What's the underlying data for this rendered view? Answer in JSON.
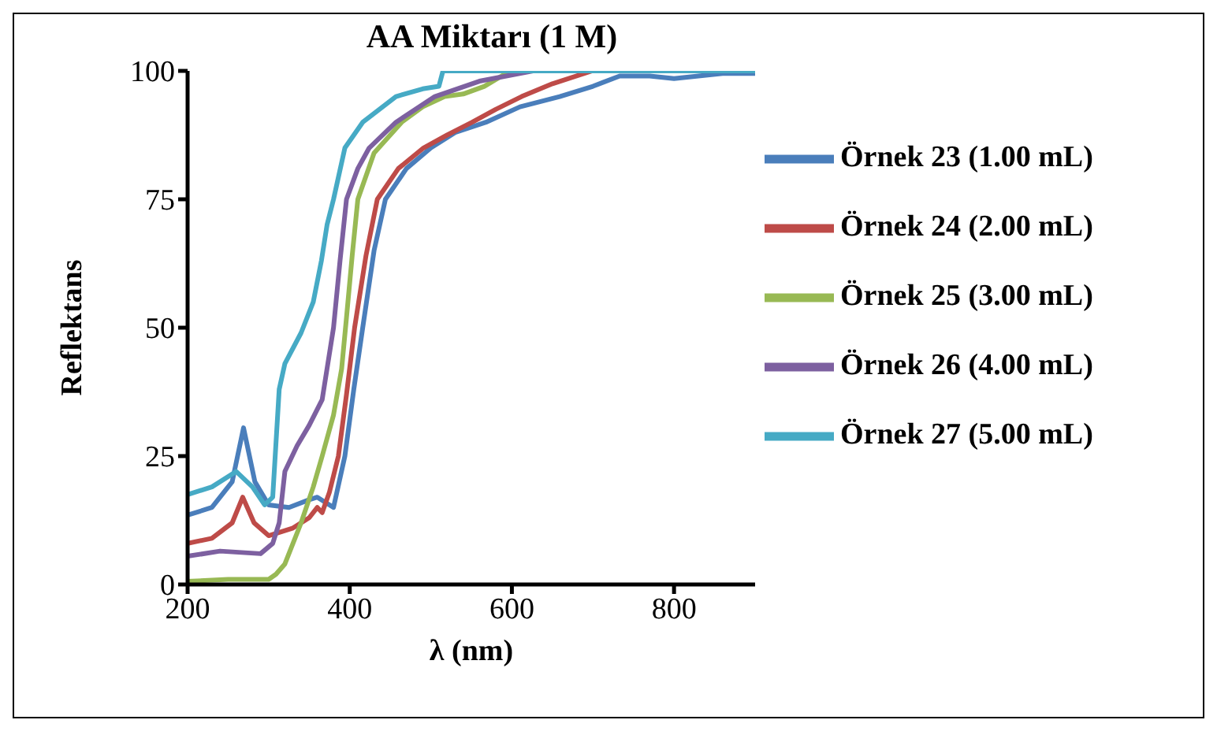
{
  "chart_data": {
    "type": "line",
    "title": "AA Miktarı (1 M)",
    "xlabel": "λ (nm)",
    "ylabel": "Reflektans",
    "xlim": [
      200,
      900
    ],
    "ylim": [
      0,
      100
    ],
    "xticks": [
      200,
      400,
      600,
      800
    ],
    "yticks": [
      0,
      25,
      50,
      75,
      100
    ],
    "legend": "right",
    "marker": "none",
    "line_style": "solid",
    "series": [
      {
        "name": "Örnek 23 (1.00 mL)",
        "color": "#4a7ebb",
        "x": [
          200,
          230,
          255,
          269,
          283,
          300,
          325,
          350,
          360,
          370,
          380,
          394,
          405,
          416,
          430,
          444,
          470,
          500,
          530,
          568,
          610,
          659,
          700,
          733,
          770,
          800,
          830,
          860,
          900
        ],
        "values": [
          13.5,
          15,
          20,
          30.5,
          20,
          15.5,
          15,
          16.5,
          17,
          16,
          15,
          25,
          38,
          50,
          65,
          75,
          81,
          85,
          88,
          90,
          93,
          95,
          97,
          99,
          99,
          98.5,
          99,
          99.5,
          99.5
        ]
      },
      {
        "name": "Örnek 24 (2.00 mL)",
        "color": "#be4b48",
        "x": [
          200,
          230,
          255,
          268,
          282,
          300,
          330,
          350,
          360,
          366,
          375,
          386,
          396,
          406,
          420,
          434,
          460,
          491,
          520,
          551,
          580,
          612,
          650,
          699
        ],
        "values": [
          8,
          9,
          12,
          17,
          12,
          9.5,
          11,
          13,
          15,
          14,
          18,
          25,
          37,
          50,
          64,
          75,
          81,
          85,
          87.5,
          90,
          92.5,
          95,
          97.5,
          100
        ]
      },
      {
        "name": "Örnek 25 (3.00 mL)",
        "color": "#98b954",
        "x": [
          200,
          250,
          300,
          309,
          320,
          340,
          355,
          366,
          380,
          390,
          396,
          403,
          410,
          430,
          464,
          490,
          517,
          540,
          566,
          598
        ],
        "values": [
          0.6,
          1,
          1,
          2,
          4,
          12,
          19,
          25,
          33,
          42,
          52,
          64,
          75,
          84,
          90,
          93,
          95,
          95.5,
          97,
          100
        ]
      },
      {
        "name": "Örnek 26 (4.00 mL)",
        "color": "#7d60a0",
        "x": [
          200,
          240,
          290,
          305,
          313,
          320,
          335,
          350,
          366,
          373,
          380,
          388,
          396,
          410,
          424,
          457,
          505,
          560,
          626,
          700,
          900
        ],
        "values": [
          5.5,
          6.5,
          6,
          8,
          12,
          22,
          27,
          31,
          36,
          43,
          50,
          63,
          75,
          81,
          85,
          90,
          95,
          98,
          100,
          100,
          100
        ]
      },
      {
        "name": "Örnek 27 (5.00 mL)",
        "color": "#46aac5",
        "x": [
          200,
          230,
          260,
          280,
          295,
          305,
          313,
          320,
          340,
          355,
          365,
          372,
          380,
          394,
          416,
          457,
          490,
          510,
          515,
          550,
          600,
          900
        ],
        "values": [
          17.5,
          19,
          22,
          19,
          15.5,
          17,
          38,
          43,
          49,
          55,
          63,
          70,
          75,
          85,
          90,
          95,
          96.5,
          97,
          100,
          100,
          100,
          100
        ]
      }
    ]
  }
}
